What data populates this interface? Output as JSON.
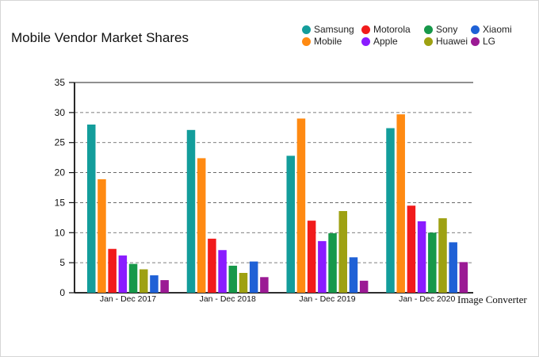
{
  "chart_data": {
    "type": "bar",
    "title": "Mobile Vendor Market Shares",
    "xlabel": "",
    "ylabel": "",
    "ylim": [
      0,
      35
    ],
    "y_ticks": [
      0,
      5,
      10,
      15,
      20,
      25,
      30,
      35
    ],
    "grid": "horizontal dashed",
    "legend_position": "top-right",
    "categories": [
      "Jan - Dec 2017",
      "Jan - Dec 2018",
      "Jan - Dec 2019",
      "Jan - Dec 2020"
    ],
    "series": [
      {
        "name": "Samsung",
        "color": "#139d9b",
        "values": [
          28.0,
          27.1,
          22.8,
          27.4
        ]
      },
      {
        "name": "Mobile",
        "color": "#ff8a12",
        "values": [
          18.9,
          22.4,
          29.0,
          29.7
        ]
      },
      {
        "name": "Motorola",
        "color": "#f11b1b",
        "values": [
          7.3,
          9.0,
          12.0,
          14.5
        ]
      },
      {
        "name": "Apple",
        "color": "#8a1cff",
        "values": [
          6.2,
          7.1,
          8.6,
          11.9
        ]
      },
      {
        "name": "Sony",
        "color": "#17984a",
        "values": [
          4.8,
          4.5,
          9.9,
          10.0
        ]
      },
      {
        "name": "Huawei",
        "color": "#9ea112",
        "values": [
          3.9,
          3.3,
          13.6,
          12.4
        ]
      },
      {
        "name": "Xiaomi",
        "color": "#1f61d6",
        "values": [
          2.9,
          5.2,
          5.9,
          8.4
        ]
      },
      {
        "name": "LG",
        "color": "#9b1a94",
        "values": [
          2.1,
          2.6,
          2.0,
          5.1
        ]
      }
    ]
  },
  "watermark": "Image Converter"
}
